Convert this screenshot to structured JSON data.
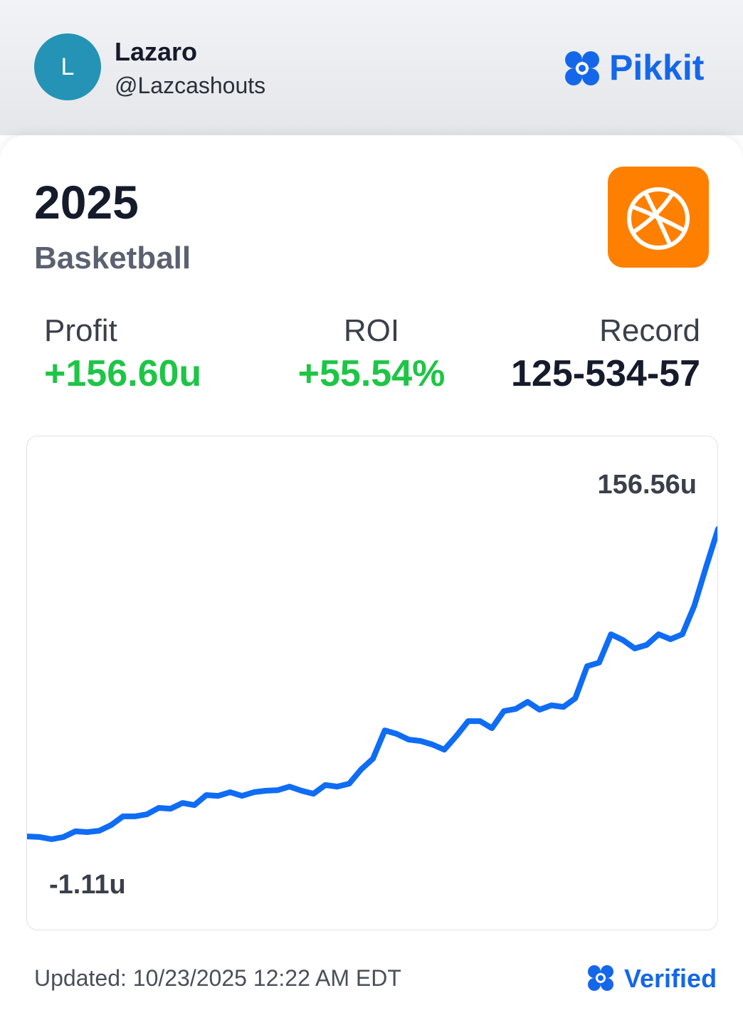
{
  "profile": {
    "avatar_initial": "L",
    "name": "Lazaro",
    "handle": "@Lazcashouts"
  },
  "brand": "Pikkit",
  "card": {
    "year": "2025",
    "sport": "Basketball",
    "stats": [
      {
        "label": "Profit",
        "value": "+156.60u"
      },
      {
        "label": "ROI",
        "value": "+55.54%"
      },
      {
        "label": "Record",
        "value": "125-534-57"
      }
    ]
  },
  "chart_data": {
    "type": "line",
    "color": "#0f6cf5",
    "values": [
      0.3,
      0.0,
      -1.11,
      0.0,
      2.9,
      2.5,
      3.2,
      6.1,
      10.5,
      10.5,
      11.5,
      14.8,
      14.4,
      17.3,
      16.2,
      21.3,
      20.9,
      22.8,
      20.9,
      22.8,
      23.5,
      23.8,
      25.6,
      23.5,
      22.0,
      26.4,
      25.6,
      27.1,
      34.3,
      39.8,
      54.2,
      52.4,
      49.5,
      48.8,
      47.0,
      44.4,
      51.3,
      58.9,
      58.9,
      55.3,
      64.0,
      65.1,
      68.7,
      64.7,
      66.9,
      66.1,
      70.5,
      86.8,
      88.6,
      103.0,
      100.1,
      95.8,
      97.6,
      103.0,
      100.5,
      103.0,
      117.5,
      137.4,
      156.56
    ],
    "annotations": [
      {
        "value": 156.56,
        "label": "156.56u"
      },
      {
        "value": -1.11,
        "label": "-1.11u"
      }
    ]
  },
  "footer": {
    "updated": "Updated: 10/23/2025 12:22 AM EDT",
    "verified": "Verified"
  }
}
